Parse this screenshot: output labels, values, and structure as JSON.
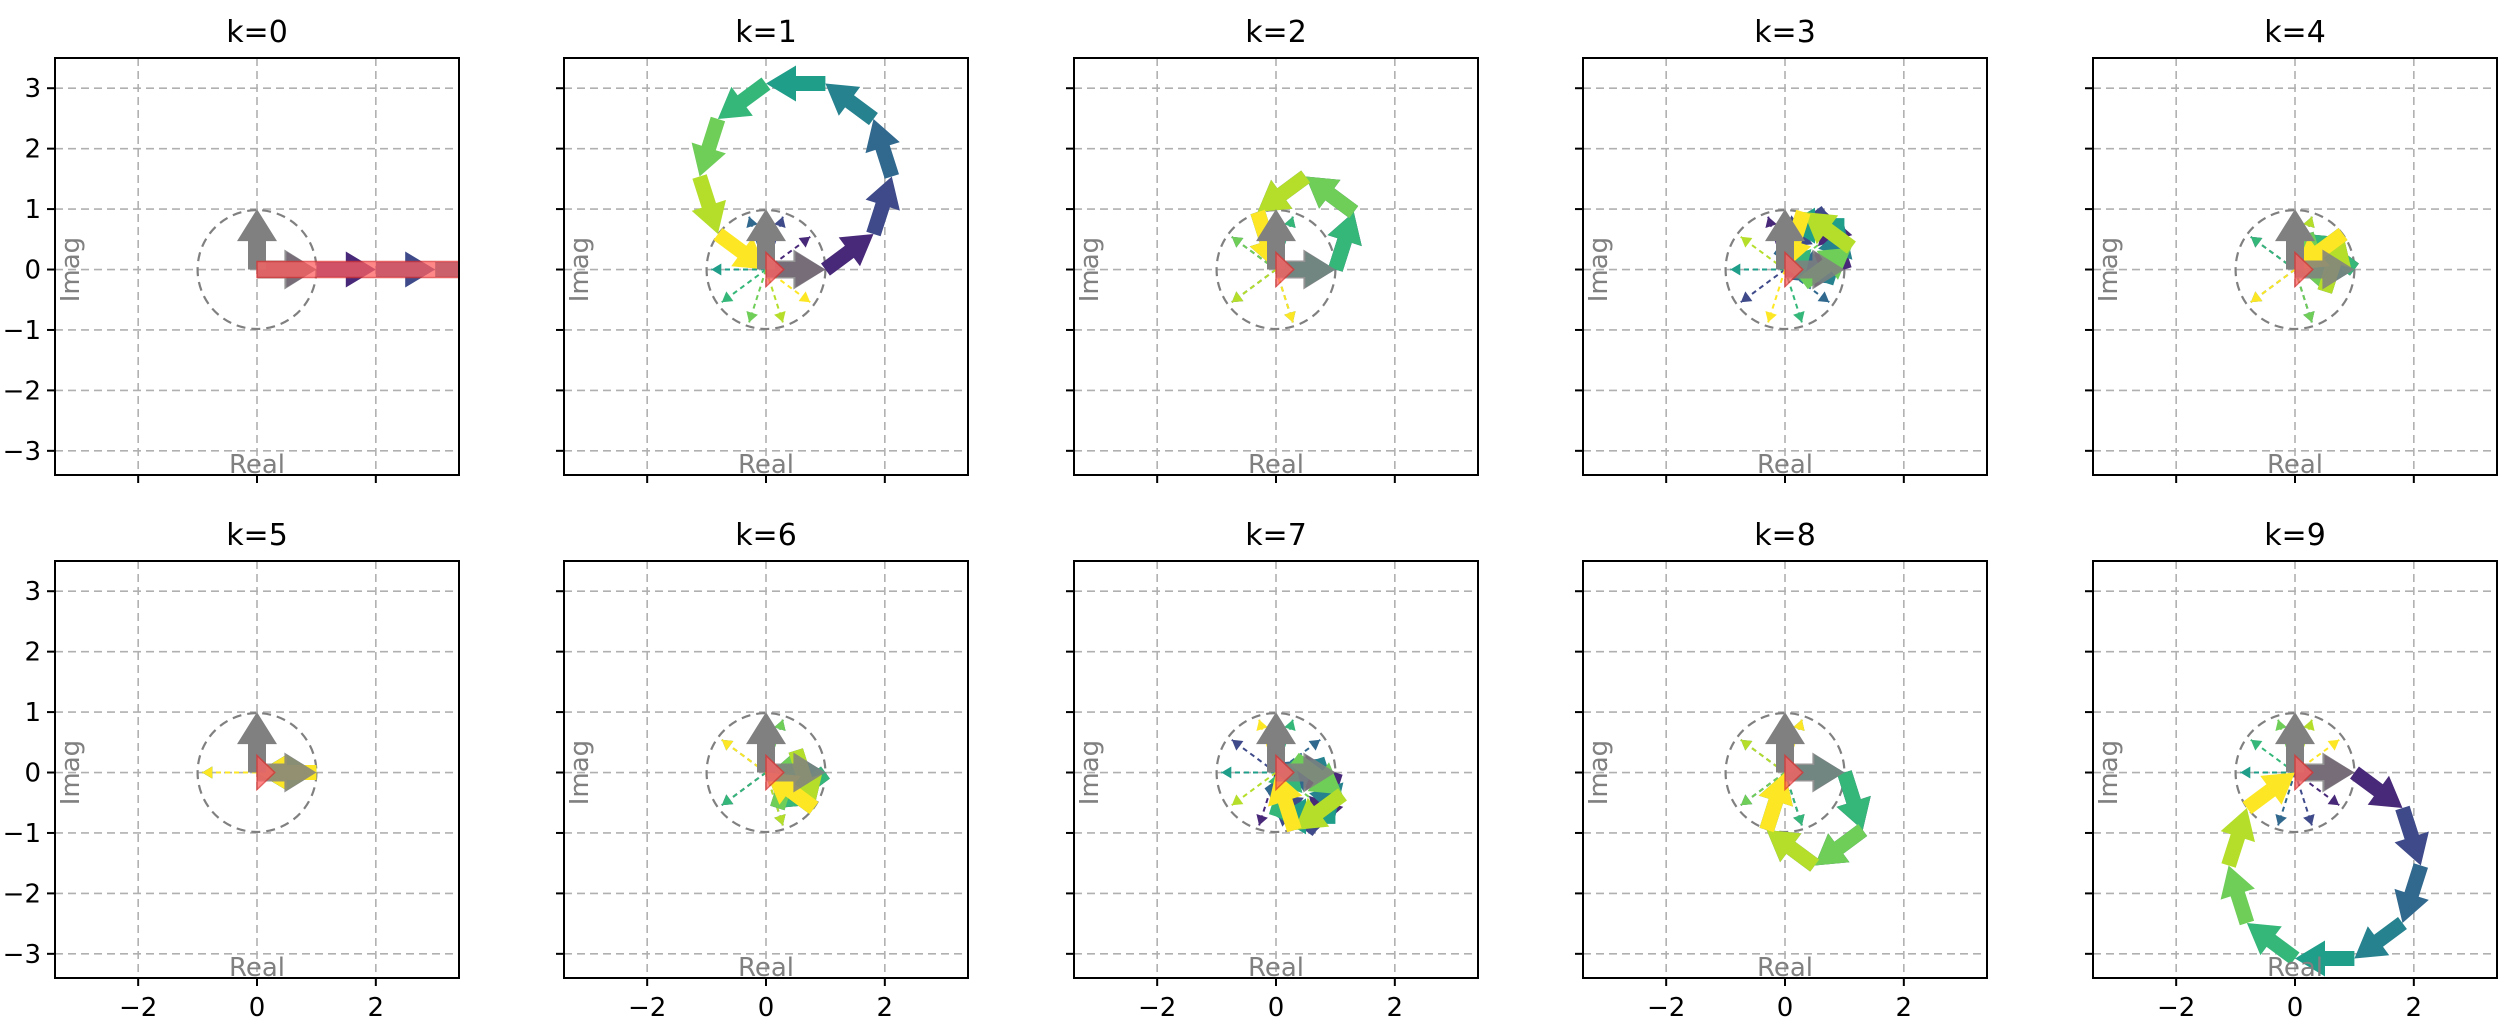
{
  "figure": {
    "colormap": "viridis",
    "grid": true,
    "grid_style": "dashed",
    "unit_circle_color": "#808080",
    "reference_arrow_color": "#808080",
    "sum_arrow_color": "#ff6060"
  },
  "chart_data": {
    "type": "scatter",
    "description_kind": "phasor-sum",
    "panels": [
      {
        "title": "k=0",
        "k": 0
      },
      {
        "title": "k=1",
        "k": 1
      },
      {
        "title": "k=2",
        "k": 2
      },
      {
        "title": "k=3",
        "k": 3
      },
      {
        "title": "k=4",
        "k": 4
      },
      {
        "title": "k=5",
        "k": 5
      },
      {
        "title": "k=6",
        "k": 6
      },
      {
        "title": "k=7",
        "k": 7
      },
      {
        "title": "k=8",
        "k": 8
      },
      {
        "title": "k=9",
        "k": 9
      }
    ],
    "n_terms": 10,
    "xlim": [
      -3.4,
      3.4
    ],
    "ylim": [
      -3.4,
      3.5
    ],
    "xticks": [
      -2,
      0,
      2
    ],
    "xtick_labels": [
      "−2",
      "0",
      "2"
    ],
    "yticks": [
      3,
      2,
      1,
      0,
      -1,
      -2,
      -3
    ],
    "ytick_labels": [
      "3",
      "2",
      "1",
      "0",
      "−1",
      "−2",
      "−3"
    ],
    "xlabel": "Real",
    "ylabel": "Imag"
  }
}
